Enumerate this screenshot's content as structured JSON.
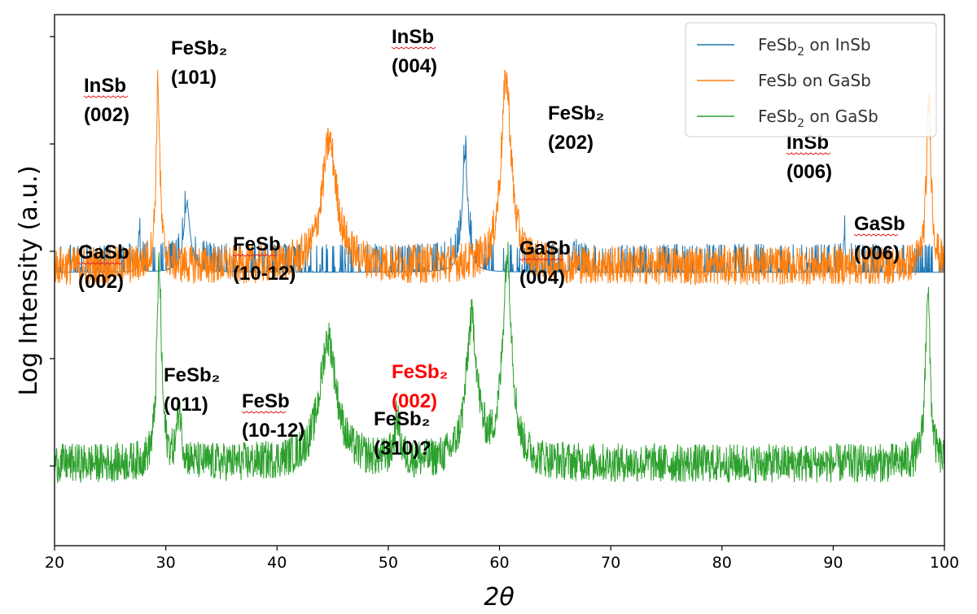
{
  "chart_data": {
    "type": "line",
    "title": "",
    "xlabel": "2θ",
    "ylabel": "Log Intensity (a.u.)",
    "xlim": [
      20,
      100
    ],
    "xticks": [
      "20",
      "30",
      "40",
      "50",
      "60",
      "70",
      "80",
      "90",
      "100"
    ],
    "ytick_count": 5,
    "yticks_labeled": false,
    "grid": false,
    "legend_position": "top-right",
    "series": [
      {
        "name": "FeSb₂ on InSb",
        "legend": {
          "main": "FeSb",
          "sub": "2",
          "rest": " on InSb"
        },
        "color": "#1f77b4",
        "baseline": 0.25,
        "noise": "sparse-spikes",
        "peaks": [
          {
            "x": 27.6,
            "h": 0.8,
            "w": 0.1
          },
          {
            "x": 31.9,
            "h": 1.3,
            "w": 0.35
          },
          {
            "x": 56.9,
            "h": 2.2,
            "w": 0.3
          },
          {
            "x": 66.7,
            "h": 0.6,
            "w": 0.1
          },
          {
            "x": 91.0,
            "h": 0.7,
            "w": 0.1
          }
        ]
      },
      {
        "name": "FeSb on GaSb",
        "legend": {
          "main": "FeSb",
          "sub": "",
          "rest": " on GaSb"
        },
        "color": "#ff7f0e",
        "baseline": 0.0,
        "noise": "dense",
        "x_range": [
          20,
          100
        ],
        "peaks": [
          {
            "x": 29.3,
            "h": 3.5,
            "w": 0.2
          },
          {
            "x": 44.7,
            "h": 2.4,
            "w": 0.8
          },
          {
            "x": 60.6,
            "h": 3.6,
            "w": 0.55
          },
          {
            "x": 98.6,
            "h": 3.2,
            "w": 0.25
          }
        ]
      },
      {
        "name": "FeSb₂ on GaSb",
        "legend": {
          "main": "FeSb",
          "sub": "2",
          "rest": " on GaSb"
        },
        "color": "#2ca02c",
        "baseline": -3.8,
        "noise": "dense",
        "peaks": [
          {
            "x": 29.4,
            "h": 3.8,
            "w": 0.25
          },
          {
            "x": 31.2,
            "h": 1.0,
            "w": 0.25
          },
          {
            "x": 44.6,
            "h": 2.4,
            "w": 0.9
          },
          {
            "x": 50.8,
            "h": 0.8,
            "w": 0.3
          },
          {
            "x": 57.5,
            "h": 2.7,
            "w": 0.6
          },
          {
            "x": 60.7,
            "h": 3.9,
            "w": 0.5
          },
          {
            "x": 98.5,
            "h": 3.4,
            "w": 0.25
          }
        ]
      }
    ],
    "annotations": [
      {
        "lines": [
          "InSb",
          "(002)"
        ],
        "color": "black",
        "underline_first": true,
        "pos": "a1"
      },
      {
        "lines": [
          "FeSb₂",
          "(101)"
        ],
        "color": "black",
        "underline_first": false,
        "pos": "a2"
      },
      {
        "lines": [
          "InSb",
          "(004)"
        ],
        "color": "black",
        "underline_first": true,
        "pos": "a3"
      },
      {
        "lines": [
          "FeSb₂",
          "(202)"
        ],
        "color": "black",
        "underline_first": false,
        "pos": "a4"
      },
      {
        "lines": [
          "InSb",
          "(006)"
        ],
        "color": "black",
        "underline_first": true,
        "pos": "a5"
      },
      {
        "lines": [
          "GaSb",
          "(002)"
        ],
        "color": "black",
        "underline_first": true,
        "pos": "a6"
      },
      {
        "lines": [
          "FeSb",
          "(10-12)"
        ],
        "color": "black",
        "underline_first": true,
        "pos": "a7"
      },
      {
        "lines": [
          "GaSb",
          "(004)"
        ],
        "color": "black",
        "underline_first": true,
        "pos": "a8"
      },
      {
        "lines": [
          "GaSb",
          "(006)"
        ],
        "color": "black",
        "underline_first": true,
        "pos": "a9"
      },
      {
        "lines": [
          "FeSb₂",
          "(011)"
        ],
        "color": "black",
        "underline_first": false,
        "pos": "a10"
      },
      {
        "lines": [
          "FeSb",
          "(10-12)"
        ],
        "color": "black",
        "underline_first": true,
        "pos": "a11"
      },
      {
        "lines": [
          "FeSb₂",
          "(002)"
        ],
        "color": "red",
        "underline_first": false,
        "pos": "a12"
      },
      {
        "lines": [
          "FeSb₂",
          "(310)?"
        ],
        "color": "black",
        "underline_first": false,
        "pos": "a13"
      }
    ]
  }
}
